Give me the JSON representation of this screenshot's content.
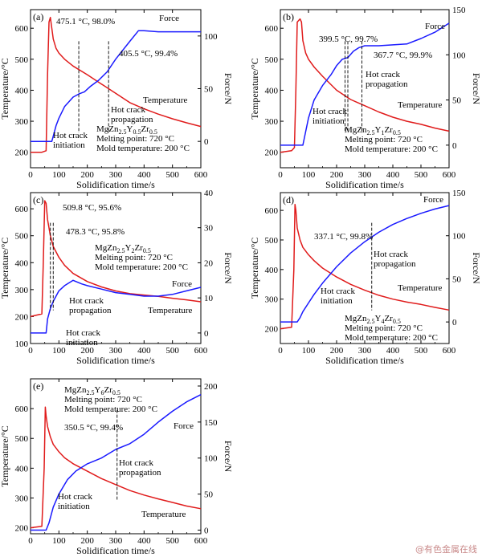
{
  "watermark": "@有色金属在线",
  "chart_data": [
    {
      "type": "line",
      "panel_label": "(a)",
      "xlabel": "Solidification time/s",
      "ylabel": "Temperature/°C",
      "y2label": "Force/N",
      "xlim": [
        0,
        600
      ],
      "ylim": [
        150,
        660
      ],
      "y2lim": [
        -25,
        125
      ],
      "xticks": [
        0,
        100,
        200,
        300,
        400,
        500,
        600
      ],
      "yticks": [
        200,
        300,
        400,
        500,
        600
      ],
      "y2ticks": [
        0,
        50,
        100
      ],
      "series": [
        {
          "name": "Temperature",
          "axis": "left",
          "color": "#e01b1b",
          "x": [
            0,
            40,
            55,
            60,
            65,
            70,
            75,
            80,
            90,
            100,
            120,
            150,
            200,
            250,
            300,
            350,
            400,
            450,
            500,
            550,
            600
          ],
          "y": [
            200,
            200,
            205,
            450,
            620,
            635,
            600,
            565,
            535,
            520,
            500,
            478,
            450,
            420,
            390,
            360,
            340,
            323,
            308,
            295,
            283
          ]
        },
        {
          "name": "Force",
          "axis": "right",
          "color": "#1a1aff",
          "x": [
            0,
            75,
            80,
            90,
            100,
            120,
            150,
            170,
            190,
            210,
            240,
            270,
            300,
            350,
            380,
            400,
            450,
            500,
            550,
            600
          ],
          "y": [
            0,
            0,
            5,
            15,
            22,
            33,
            42,
            45,
            47,
            52,
            58,
            66,
            78,
            95,
            105,
            105,
            104,
            104,
            104,
            104
          ]
        }
      ],
      "annotations": [
        {
          "text": "475.1 °C, 98.0%",
          "x": 170
        },
        {
          "text": "405.5 °C, 99.4%",
          "x": 275
        },
        {
          "text": "Hot crack",
          "x": 170
        },
        {
          "text": "initiation",
          "x": 170
        },
        {
          "text": "Hot crack",
          "x": 275
        },
        {
          "text": "propagation",
          "x": 275
        }
      ],
      "series_labels": [
        "Force",
        "Temperature"
      ],
      "info": {
        "alloy_base": "MgZn",
        "sub1": "2.5",
        "mid1": "Y",
        "sub2": "0.5",
        "mid2": "Zr",
        "sub3": "0.5",
        "melting": "Melting point: 720 °C",
        "mold": "Mold temperature: 200 °C"
      }
    },
    {
      "type": "line",
      "panel_label": "(b)",
      "xlabel": "Solidification time/s",
      "ylabel": "Temperature/°C",
      "y2label": "Force/N",
      "xlim": [
        0,
        600
      ],
      "ylim": [
        150,
        660
      ],
      "y2lim": [
        -25,
        150
      ],
      "xticks": [
        0,
        100,
        200,
        300,
        400,
        500,
        600
      ],
      "yticks": [
        200,
        300,
        400,
        500,
        600
      ],
      "y2ticks": [
        0,
        50,
        100,
        150
      ],
      "series": [
        {
          "name": "Temperature",
          "axis": "left",
          "color": "#e01b1b",
          "x": [
            0,
            40,
            50,
            55,
            60,
            65,
            70,
            75,
            80,
            90,
            100,
            120,
            150,
            200,
            250,
            300,
            350,
            400,
            450,
            500,
            550,
            600
          ],
          "y": [
            200,
            205,
            215,
            400,
            620,
            625,
            630,
            620,
            560,
            520,
            500,
            475,
            445,
            400,
            370,
            350,
            330,
            313,
            300,
            290,
            278,
            268
          ]
        },
        {
          "name": "Force",
          "axis": "right",
          "color": "#1a1aff",
          "x": [
            0,
            80,
            90,
            100,
            120,
            150,
            180,
            200,
            220,
            240,
            260,
            280,
            300,
            350,
            400,
            450,
            500,
            550,
            600
          ],
          "y": [
            0,
            0,
            15,
            30,
            50,
            66,
            78,
            88,
            95,
            97,
            104,
            108,
            110,
            110,
            111,
            112,
            118,
            125,
            135
          ]
        }
      ],
      "annotations": [
        {
          "text": "399.5 °C, 99.7%",
          "x": 230
        },
        {
          "text": "367.7 °C, 99.9%",
          "x": 290
        },
        {
          "text": "Hot crack",
          "x": 240
        },
        {
          "text": "propagation",
          "x": 240
        },
        {
          "text": "Hot crack",
          "x": 230
        },
        {
          "text": "initiation",
          "x": 230
        }
      ],
      "series_labels": [
        "Force",
        "Temperature"
      ],
      "info": {
        "alloy_base": "MgZn",
        "sub1": "2.5",
        "mid1": "Y",
        "sub2": "1",
        "mid2": "Zr",
        "sub3": "0.5",
        "melting": "Melting point: 720 °C",
        "mold": "Mold temperature: 200 °C"
      }
    },
    {
      "type": "line",
      "panel_label": "(c)",
      "xlabel": "Solidification time/s",
      "ylabel": "Temperature/°C",
      "y2label": "Force/N",
      "xlim": [
        0,
        600
      ],
      "ylim": [
        100,
        660
      ],
      "y2lim": [
        -3,
        40
      ],
      "xticks": [
        0,
        100,
        200,
        300,
        400,
        500,
        600
      ],
      "yticks": [
        100,
        200,
        300,
        400,
        500,
        600
      ],
      "y2ticks": [
        0,
        10,
        20,
        30,
        40
      ],
      "series": [
        {
          "name": "Temperature",
          "axis": "left",
          "color": "#e01b1b",
          "x": [
            0,
            40,
            45,
            50,
            55,
            60,
            70,
            80,
            100,
            120,
            150,
            200,
            250,
            300,
            350,
            400,
            450,
            500,
            550,
            600
          ],
          "y": [
            200,
            210,
            400,
            630,
            620,
            560,
            500,
            460,
            420,
            390,
            360,
            330,
            310,
            295,
            285,
            280,
            275,
            268,
            262,
            255
          ]
        },
        {
          "name": "Force",
          "axis": "right",
          "color": "#1a1aff",
          "x": [
            0,
            55,
            60,
            70,
            80,
            100,
            120,
            150,
            180,
            200,
            250,
            300,
            350,
            400,
            450,
            500,
            550,
            600
          ],
          "y": [
            0,
            0,
            4,
            7,
            9,
            12,
            13.5,
            15,
            14,
            13.5,
            12.5,
            11.5,
            11,
            10.5,
            10.5,
            11,
            12,
            13
          ]
        }
      ],
      "annotations": [
        {
          "text": "509.8 °C, 95.6%",
          "x": 70
        },
        {
          "text": "478.3 °C, 95.8%",
          "x": 80
        },
        {
          "text": "Hot crack",
          "x": 80
        },
        {
          "text": "propagation",
          "x": 80
        },
        {
          "text": "Hot crack",
          "x": 70
        },
        {
          "text": "initiation",
          "x": 70
        }
      ],
      "series_labels": [
        "Force",
        "Temperature"
      ],
      "info": {
        "alloy_base": "MgZn",
        "sub1": "2.5",
        "mid1": "Y",
        "sub2": "2",
        "mid2": "Zr",
        "sub3": "0.5",
        "melting": "Melting point: 720 °C",
        "mold": "Mold temperature: 200 °C"
      }
    },
    {
      "type": "line",
      "panel_label": "(d)",
      "xlabel": "Solidification time/s",
      "ylabel": "Temperature/°C",
      "y2label": "Force/N",
      "xlim": [
        0,
        600
      ],
      "ylim": [
        150,
        660
      ],
      "y2lim": [
        -25,
        150
      ],
      "xticks": [
        0,
        100,
        200,
        300,
        400,
        500,
        600
      ],
      "yticks": [
        200,
        300,
        400,
        500,
        600
      ],
      "y2ticks": [
        0,
        50,
        100,
        150
      ],
      "series": [
        {
          "name": "Temperature",
          "axis": "left",
          "color": "#e01b1b",
          "x": [
            0,
            40,
            48,
            52,
            55,
            60,
            70,
            80,
            100,
            120,
            150,
            200,
            250,
            300,
            350,
            400,
            450,
            500,
            550,
            600
          ],
          "y": [
            200,
            205,
            400,
            620,
            600,
            540,
            500,
            475,
            450,
            430,
            405,
            375,
            350,
            330,
            313,
            300,
            290,
            282,
            272,
            263
          ]
        },
        {
          "name": "Force",
          "axis": "right",
          "color": "#1a1aff",
          "x": [
            0,
            60,
            70,
            80,
            100,
            120,
            150,
            200,
            250,
            300,
            350,
            400,
            450,
            500,
            550,
            600
          ],
          "y": [
            0,
            0,
            5,
            12,
            22,
            32,
            45,
            64,
            80,
            93,
            104,
            113,
            120,
            126,
            131,
            135
          ]
        }
      ],
      "annotations": [
        {
          "text": "337.1 °C, 99.8%",
          "x": 325
        },
        {
          "text": "Hot crack",
          "x": 325
        },
        {
          "text": "propagation",
          "x": 325
        },
        {
          "text": "Hot crack",
          "x": 325
        },
        {
          "text": "initiation",
          "x": 325
        }
      ],
      "series_labels": [
        "Force",
        "Temperature"
      ],
      "info": {
        "alloy_base": "MgZn",
        "sub1": "2.5",
        "mid1": "Y",
        "sub2": "4",
        "mid2": "Zr",
        "sub3": "0.5",
        "melting": "Melting point: 720 °C",
        "mold": "Mold temperature: 200 °C"
      }
    },
    {
      "type": "line",
      "panel_label": "(e)",
      "xlabel": "Solidification time/s",
      "ylabel": "Temperature/°C",
      "y2label": "Force/N",
      "xlim": [
        0,
        600
      ],
      "ylim": [
        180,
        700
      ],
      "y2lim": [
        -5,
        210
      ],
      "xticks": [
        0,
        100,
        200,
        300,
        400,
        500,
        600
      ],
      "yticks": [
        200,
        300,
        400,
        500,
        600
      ],
      "y2ticks": [
        0,
        50,
        100,
        150,
        200
      ],
      "series": [
        {
          "name": "Temperature",
          "axis": "left",
          "color": "#e01b1b",
          "x": [
            0,
            40,
            48,
            52,
            55,
            60,
            70,
            80,
            100,
            120,
            150,
            200,
            250,
            300,
            350,
            400,
            450,
            500,
            550,
            600
          ],
          "y": [
            200,
            205,
            400,
            605,
            575,
            540,
            505,
            480,
            455,
            435,
            415,
            390,
            365,
            345,
            325,
            310,
            297,
            285,
            273,
            264
          ]
        },
        {
          "name": "Force",
          "axis": "right",
          "color": "#1a1aff",
          "x": [
            0,
            55,
            65,
            80,
            100,
            130,
            160,
            200,
            250,
            300,
            350,
            400,
            450,
            500,
            550,
            600
          ],
          "y": [
            0,
            0,
            10,
            32,
            50,
            70,
            82,
            92,
            100,
            112,
            120,
            133,
            150,
            165,
            178,
            188
          ]
        }
      ],
      "annotations": [
        {
          "text": "350.5 °C, 99.4%",
          "x": 305
        },
        {
          "text": "Hot crack",
          "x": 305
        },
        {
          "text": "propagation",
          "x": 305
        },
        {
          "text": "Hot crack",
          "x": 305
        },
        {
          "text": "initiation",
          "x": 305
        }
      ],
      "series_labels": [
        "Force",
        "Temperature"
      ],
      "info": {
        "alloy_base": "MgZn",
        "sub1": "2.5",
        "mid1": "Y",
        "sub2": "6",
        "mid2": "Zr",
        "sub3": "0.5",
        "melting": "Melting point: 720 °C",
        "mold": "Mold temperature: 200 °C"
      }
    }
  ]
}
